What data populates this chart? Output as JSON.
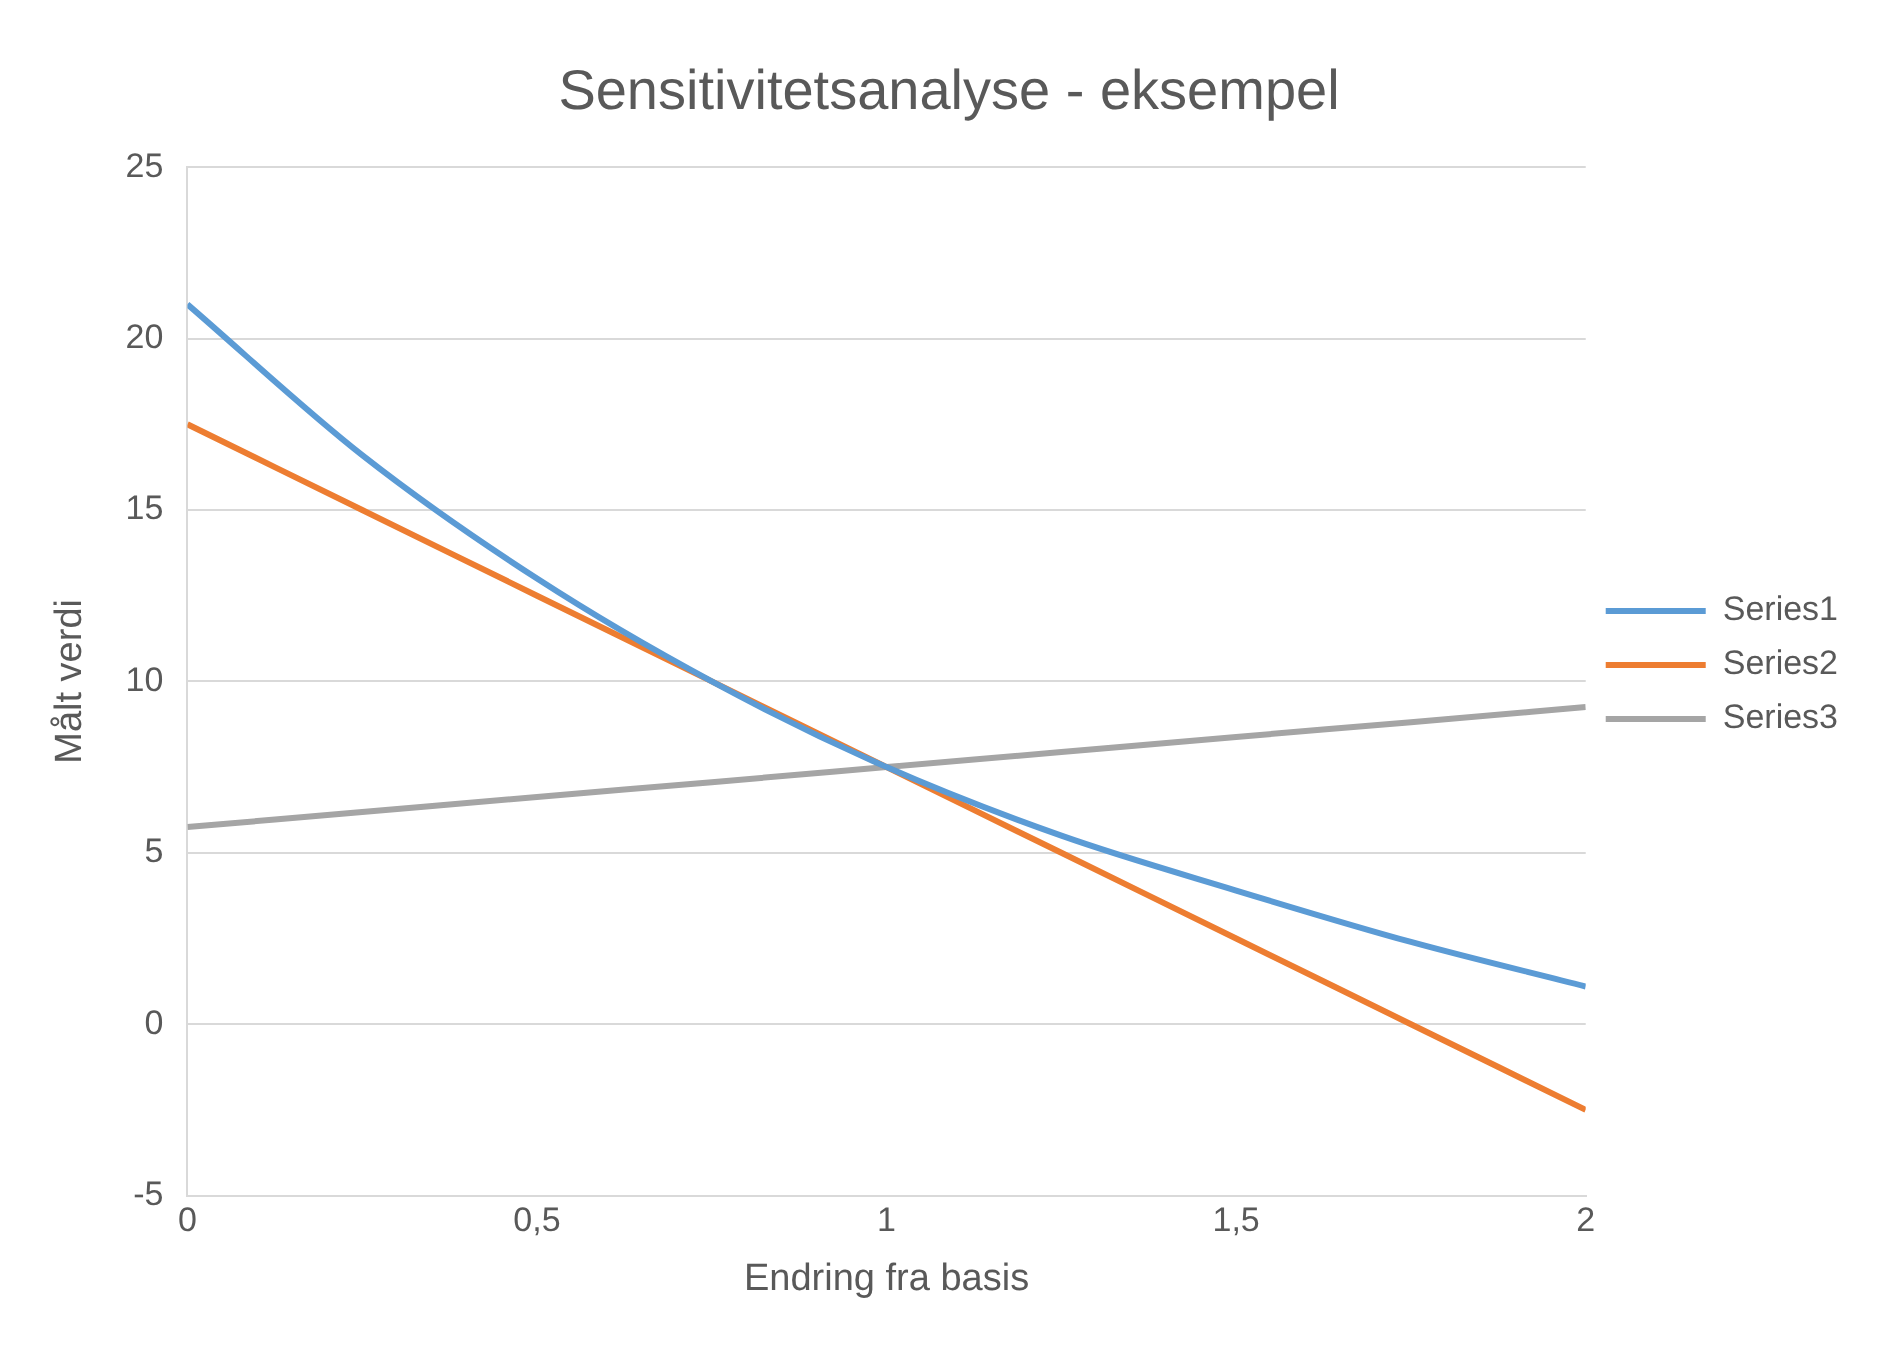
{
  "chart_data": {
    "type": "line",
    "title": "Sensitivitetsanalyse - eksempel",
    "xlabel": "Endring fra basis",
    "ylabel": "Målt verdi",
    "x": [
      0,
      0.25,
      0.5,
      0.75,
      1,
      1.25,
      1.5,
      1.75,
      2
    ],
    "series": [
      {
        "name": "Series1",
        "color": "#5b9bd5",
        "values": [
          21,
          16.6,
          13.0,
          10.0,
          7.5,
          5.5,
          3.9,
          2.4,
          1.1
        ]
      },
      {
        "name": "Series2",
        "color": "#ed7d31",
        "values": [
          17.5,
          15,
          12.5,
          10,
          7.5,
          5,
          2.5,
          0,
          -2.5
        ]
      },
      {
        "name": "Series3",
        "color": "#a5a5a5",
        "values": [
          5.75,
          6.19,
          6.63,
          7.06,
          7.5,
          7.94,
          8.38,
          8.81,
          9.25
        ]
      }
    ],
    "xlim": [
      0,
      2
    ],
    "xticks": [
      0,
      {
        "value": 0.5,
        "label": "0,5"
      },
      1,
      {
        "value": 1.5,
        "label": "1,5"
      },
      2
    ],
    "ylim": [
      -5,
      25
    ],
    "yticks": [
      -5,
      0,
      5,
      10,
      15,
      20,
      25
    ],
    "grid": "y",
    "legend": "right",
    "marker": "none",
    "line_style": "solid"
  }
}
